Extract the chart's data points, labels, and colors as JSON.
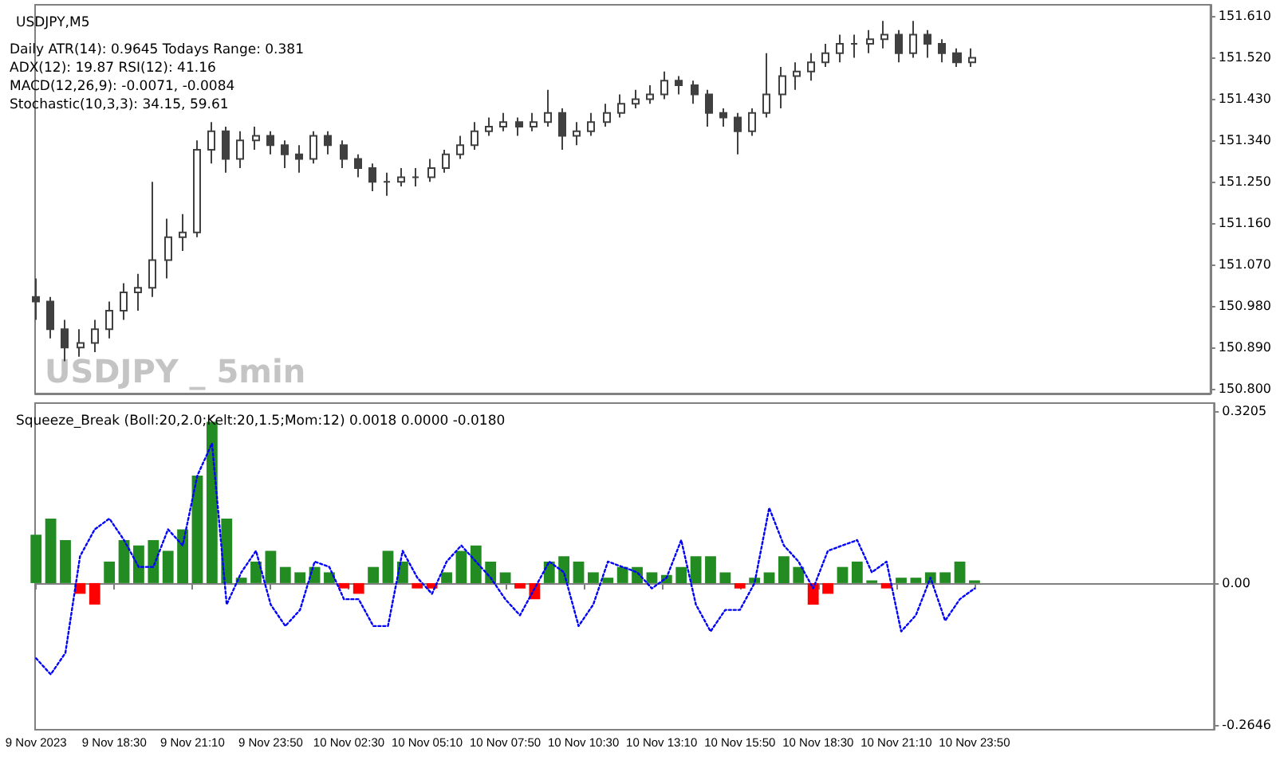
{
  "chart_data": [
    {
      "type": "candlestick",
      "title": "USDJPY,M5",
      "annotations": [
        "Daily ATR(14): 0.9645 Todays Range: 0.381",
        "ADX(12): 19.87 RSI(12): 41.16",
        "MACD(12,26,9): -0.0071, -0.0084",
        "Stochastic(10,3,3): 34.15, 59.61",
        "USDJPY _ 5min"
      ],
      "color": "#404040",
      "x": [
        "2023-11-09T15:50",
        "2023-11-09T16:20",
        "2023-11-09T16:50",
        "2023-11-09T17:20",
        "2023-11-09T17:50",
        "2023-11-09T18:20",
        "2023-11-09T18:50",
        "2023-11-09T19:20",
        "2023-11-09T19:50",
        "2023-11-09T20:20",
        "2023-11-09T20:50",
        "2023-11-09T21:20",
        "2023-11-09T21:50",
        "2023-11-09T22:20",
        "2023-11-09T22:50",
        "2023-11-09T23:20",
        "2023-11-09T23:50",
        "2023-11-10T00:20",
        "2023-11-10T00:50",
        "2023-11-10T01:20",
        "2023-11-10T01:50",
        "2023-11-10T02:20",
        "2023-11-10T02:50",
        "2023-11-10T03:20",
        "2023-11-10T03:50",
        "2023-11-10T04:20",
        "2023-11-10T04:50",
        "2023-11-10T05:20",
        "2023-11-10T05:50",
        "2023-11-10T06:20",
        "2023-11-10T06:50",
        "2023-11-10T07:20",
        "2023-11-10T07:50",
        "2023-11-10T08:20",
        "2023-11-10T08:50",
        "2023-11-10T09:20",
        "2023-11-10T09:50",
        "2023-11-10T10:20",
        "2023-11-10T10:50",
        "2023-11-10T11:20",
        "2023-11-10T11:50",
        "2023-11-10T12:20",
        "2023-11-10T12:50",
        "2023-11-10T13:20",
        "2023-11-10T13:50",
        "2023-11-10T14:20",
        "2023-11-10T14:50",
        "2023-11-10T15:20",
        "2023-11-10T15:50",
        "2023-11-10T16:20",
        "2023-11-10T16:50",
        "2023-11-10T17:20",
        "2023-11-10T17:50",
        "2023-11-10T18:20",
        "2023-11-10T18:50",
        "2023-11-10T19:20",
        "2023-11-10T19:50",
        "2023-11-10T20:20",
        "2023-11-10T20:50",
        "2023-11-10T21:20",
        "2023-11-10T21:50",
        "2023-11-10T22:20",
        "2023-11-10T22:50",
        "2023-11-10T23:20",
        "2023-11-10T23:50"
      ],
      "ohlc": [
        [
          151.0,
          151.04,
          150.95,
          150.99
        ],
        [
          150.99,
          151.0,
          150.91,
          150.93
        ],
        [
          150.93,
          150.95,
          150.86,
          150.89
        ],
        [
          150.89,
          150.93,
          150.87,
          150.9
        ],
        [
          150.9,
          150.95,
          150.88,
          150.93
        ],
        [
          150.93,
          150.99,
          150.91,
          150.97
        ],
        [
          150.97,
          151.03,
          150.95,
          151.01
        ],
        [
          151.01,
          151.05,
          150.97,
          151.02
        ],
        [
          151.02,
          151.25,
          151.0,
          151.08
        ],
        [
          151.08,
          151.17,
          151.04,
          151.13
        ],
        [
          151.13,
          151.18,
          151.1,
          151.14
        ],
        [
          151.14,
          151.34,
          151.13,
          151.32
        ],
        [
          151.32,
          151.38,
          151.29,
          151.36
        ],
        [
          151.36,
          151.37,
          151.27,
          151.3
        ],
        [
          151.3,
          151.36,
          151.28,
          151.34
        ],
        [
          151.34,
          151.37,
          151.32,
          151.35
        ],
        [
          151.35,
          151.36,
          151.31,
          151.33
        ],
        [
          151.33,
          151.34,
          151.28,
          151.31
        ],
        [
          151.31,
          151.33,
          151.27,
          151.3
        ],
        [
          151.3,
          151.36,
          151.29,
          151.35
        ],
        [
          151.35,
          151.36,
          151.31,
          151.33
        ],
        [
          151.33,
          151.34,
          151.28,
          151.3
        ],
        [
          151.3,
          151.31,
          151.26,
          151.28
        ],
        [
          151.28,
          151.29,
          151.23,
          151.25
        ],
        [
          151.25,
          151.27,
          151.22,
          151.25
        ],
        [
          151.25,
          151.28,
          151.24,
          151.26
        ],
        [
          151.26,
          151.28,
          151.24,
          151.26
        ],
        [
          151.26,
          151.3,
          151.25,
          151.28
        ],
        [
          151.28,
          151.32,
          151.27,
          151.31
        ],
        [
          151.31,
          151.35,
          151.3,
          151.33
        ],
        [
          151.33,
          151.38,
          151.32,
          151.36
        ],
        [
          151.36,
          151.39,
          151.35,
          151.37
        ],
        [
          151.37,
          151.4,
          151.36,
          151.38
        ],
        [
          151.38,
          151.39,
          151.35,
          151.37
        ],
        [
          151.37,
          151.4,
          151.36,
          151.38
        ],
        [
          151.38,
          151.45,
          151.37,
          151.4
        ],
        [
          151.4,
          151.41,
          151.32,
          151.35
        ],
        [
          151.35,
          151.38,
          151.33,
          151.36
        ],
        [
          151.36,
          151.4,
          151.35,
          151.38
        ],
        [
          151.38,
          151.42,
          151.37,
          151.4
        ],
        [
          151.4,
          151.44,
          151.39,
          151.42
        ],
        [
          151.42,
          151.45,
          151.41,
          151.43
        ],
        [
          151.43,
          151.46,
          151.42,
          151.44
        ],
        [
          151.44,
          151.49,
          151.43,
          151.47
        ],
        [
          151.47,
          151.48,
          151.44,
          151.46
        ],
        [
          151.46,
          151.47,
          151.42,
          151.44
        ],
        [
          151.44,
          151.45,
          151.37,
          151.4
        ],
        [
          151.4,
          151.41,
          151.37,
          151.39
        ],
        [
          151.39,
          151.4,
          151.31,
          151.36
        ],
        [
          151.36,
          151.41,
          151.35,
          151.4
        ],
        [
          151.4,
          151.53,
          151.39,
          151.44
        ],
        [
          151.44,
          151.5,
          151.41,
          151.48
        ],
        [
          151.48,
          151.51,
          151.45,
          151.49
        ],
        [
          151.49,
          151.53,
          151.47,
          151.51
        ],
        [
          151.51,
          151.55,
          151.5,
          151.53
        ],
        [
          151.53,
          151.57,
          151.51,
          151.55
        ],
        [
          151.55,
          151.57,
          151.52,
          151.55
        ],
        [
          151.55,
          151.58,
          151.53,
          151.56
        ],
        [
          151.56,
          151.6,
          151.54,
          151.57
        ],
        [
          151.57,
          151.58,
          151.51,
          151.53
        ],
        [
          151.53,
          151.6,
          151.52,
          151.57
        ],
        [
          151.57,
          151.58,
          151.52,
          151.55
        ],
        [
          151.55,
          151.56,
          151.51,
          151.53
        ],
        [
          151.53,
          151.54,
          151.5,
          151.51
        ],
        [
          151.51,
          151.54,
          151.5,
          151.52
        ]
      ],
      "xlim": [
        "2023-11-09T15:48",
        "2023-11-11T08:00"
      ],
      "ylim": [
        150.79,
        151.635
      ],
      "yticks": [
        {
          "value": 150.8,
          "label": "150.800"
        },
        {
          "value": 150.89,
          "label": "150.890"
        },
        {
          "value": 150.98,
          "label": "150.980"
        },
        {
          "value": 151.07,
          "label": "151.070"
        },
        {
          "value": 151.16,
          "label": "151.160"
        },
        {
          "value": 151.25,
          "label": "151.250"
        },
        {
          "value": 151.34,
          "label": "151.340"
        },
        {
          "value": 151.43,
          "label": "151.430"
        },
        {
          "value": 151.52,
          "label": "151.520"
        },
        {
          "value": 151.61,
          "label": "151.610"
        }
      ],
      "tick_labels": "y"
    },
    {
      "type": "bar",
      "title": "Squeeze_Break (Boll:20,2.0;Kelt:20,1.5;Mom:12) 0.0018 0.0000 -0.0180",
      "x": [
        "2023-11-09T15:50",
        "2023-11-09T16:20",
        "2023-11-09T16:50",
        "2023-11-09T17:20",
        "2023-11-09T17:50",
        "2023-11-09T18:20",
        "2023-11-09T18:50",
        "2023-11-09T19:20",
        "2023-11-09T19:50",
        "2023-11-09T20:20",
        "2023-11-09T20:50",
        "2023-11-09T21:20",
        "2023-11-09T21:50",
        "2023-11-09T22:20",
        "2023-11-09T22:50",
        "2023-11-09T23:20",
        "2023-11-09T23:50",
        "2023-11-10T00:20",
        "2023-11-10T00:50",
        "2023-11-10T01:20",
        "2023-11-10T01:50",
        "2023-11-10T02:20",
        "2023-11-10T02:50",
        "2023-11-10T03:20",
        "2023-11-10T03:50",
        "2023-11-10T04:20",
        "2023-11-10T04:50",
        "2023-11-10T05:20",
        "2023-11-10T05:50",
        "2023-11-10T06:20",
        "2023-11-10T06:50",
        "2023-11-10T07:20",
        "2023-11-10T07:50",
        "2023-11-10T08:20",
        "2023-11-10T08:50",
        "2023-11-10T09:20",
        "2023-11-10T09:50",
        "2023-11-10T10:20",
        "2023-11-10T10:50",
        "2023-11-10T11:20",
        "2023-11-10T11:50",
        "2023-11-10T12:20",
        "2023-11-10T12:50",
        "2023-11-10T13:20",
        "2023-11-10T13:50",
        "2023-11-10T14:20",
        "2023-11-10T14:50",
        "2023-11-10T15:20",
        "2023-11-10T15:50",
        "2023-11-10T16:20",
        "2023-11-10T16:50",
        "2023-11-10T17:20",
        "2023-11-10T17:50",
        "2023-11-10T18:20",
        "2023-11-10T18:50",
        "2023-11-10T19:20",
        "2023-11-10T19:50",
        "2023-11-10T20:20",
        "2023-11-10T20:50",
        "2023-11-10T21:20",
        "2023-11-10T21:50",
        "2023-11-10T22:20",
        "2023-11-10T22:50",
        "2023-11-10T23:20",
        "2023-11-10T23:50"
      ],
      "series": [
        {
          "values": [
            0.09,
            0.12,
            0.08,
            -0.02,
            -0.04,
            0.04,
            0.08,
            0.07,
            0.08,
            0.06,
            0.1,
            0.2,
            0.3,
            0.12,
            0.01,
            0.04,
            0.06,
            0.03,
            0.02,
            0.03,
            0.02,
            -0.01,
            -0.02,
            0.03,
            0.06,
            0.04,
            -0.01,
            -0.01,
            0.02,
            0.06,
            0.07,
            0.04,
            0.02,
            -0.01,
            -0.03,
            0.04,
            0.05,
            0.04,
            0.02,
            0.01,
            0.03,
            0.03,
            0.02,
            0.015,
            0.03,
            0.05,
            0.05,
            0.02,
            -0.01,
            0.01,
            0.02,
            0.05,
            0.03,
            -0.04,
            -0.02,
            0.03,
            0.04,
            0.005,
            -0.01,
            0.01,
            0.01,
            0.02,
            0.02,
            0.04,
            0.005
          ],
          "colors": [
            "#228b22",
            "#228b22",
            "#228b22",
            "#ff0000",
            "#ff0000",
            "#228b22",
            "#228b22",
            "#228b22",
            "#228b22",
            "#228b22",
            "#228b22",
            "#228b22",
            "#228b22",
            "#228b22",
            "#228b22",
            "#228b22",
            "#228b22",
            "#228b22",
            "#228b22",
            "#228b22",
            "#228b22",
            "#ff0000",
            "#ff0000",
            "#228b22",
            "#228b22",
            "#228b22",
            "#ff0000",
            "#ff0000",
            "#228b22",
            "#228b22",
            "#228b22",
            "#228b22",
            "#228b22",
            "#ff0000",
            "#ff0000",
            "#228b22",
            "#228b22",
            "#228b22",
            "#228b22",
            "#228b22",
            "#228b22",
            "#228b22",
            "#228b22",
            "#228b22",
            "#228b22",
            "#228b22",
            "#228b22",
            "#228b22",
            "#ff0000",
            "#228b22",
            "#228b22",
            "#228b22",
            "#228b22",
            "#ff0000",
            "#ff0000",
            "#228b22",
            "#228b22",
            "#228b22",
            "#ff0000",
            "#228b22",
            "#228b22",
            "#228b22",
            "#228b22",
            "#228b22",
            "#228b22"
          ]
        },
        {
          "type": "line",
          "color": "#0000ff",
          "line_style": "dotted",
          "marker": "none",
          "values": [
            -0.14,
            -0.17,
            -0.13,
            0.05,
            0.1,
            0.12,
            0.08,
            0.03,
            0.03,
            0.1,
            0.07,
            0.2,
            0.26,
            -0.04,
            0.02,
            0.06,
            -0.04,
            -0.08,
            -0.05,
            0.04,
            0.03,
            -0.03,
            -0.03,
            -0.08,
            -0.08,
            0.06,
            0.01,
            -0.02,
            0.04,
            0.07,
            0.04,
            0.01,
            -0.03,
            -0.06,
            -0.01,
            0.04,
            0.02,
            -0.08,
            -0.04,
            0.04,
            0.03,
            0.02,
            -0.01,
            0.01,
            0.08,
            -0.04,
            -0.09,
            -0.05,
            -0.05,
            0.0,
            0.14,
            0.07,
            0.04,
            -0.01,
            0.06,
            0.07,
            0.08,
            0.02,
            0.04,
            -0.09,
            -0.06,
            0.01,
            -0.07,
            -0.03,
            -0.01
          ]
        }
      ],
      "xlim": [
        "2023-11-09T15:48",
        "2023-11-11T08:00"
      ],
      "ylim": [
        -0.273,
        0.335
      ],
      "yticks": [
        0.3205,
        {
          "value": 0,
          "label": "0.00"
        },
        -0.2646
      ],
      "xticks": [
        {
          "value": "2023-11-09T15:50",
          "label": "9 Nov 2023"
        },
        {
          "value": "2023-11-09T18:30",
          "label": "9 Nov 18:30"
        },
        {
          "value": "2023-11-09T21:10",
          "label": "9 Nov 21:10"
        },
        {
          "value": "2023-11-09T23:50",
          "label": "9 Nov 23:50"
        },
        {
          "value": "2023-11-10T02:30",
          "label": "10 Nov 02:30"
        },
        {
          "value": "2023-11-10T05:10",
          "label": "10 Nov 05:10"
        },
        {
          "value": "2023-11-10T07:50",
          "label": "10 Nov 07:50"
        },
        {
          "value": "2023-11-10T10:30",
          "label": "10 Nov 10:30"
        },
        {
          "value": "2023-11-10T13:10",
          "label": "10 Nov 13:10"
        },
        {
          "value": "2023-11-10T15:50",
          "label": "10 Nov 15:50"
        },
        {
          "value": "2023-11-10T18:30",
          "label": "10 Nov 18:30"
        },
        {
          "value": "2023-11-10T21:10",
          "label": "10 Nov 21:10"
        },
        {
          "value": "2023-11-10T23:50",
          "label": "10 Nov 23:50"
        }
      ]
    }
  ]
}
